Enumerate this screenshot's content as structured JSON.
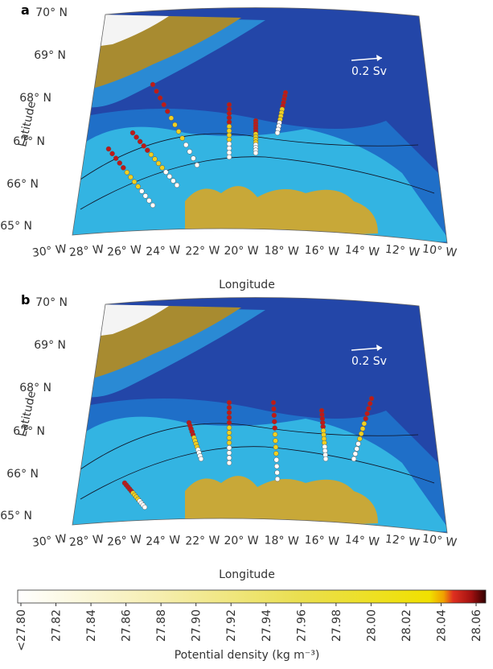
{
  "panels": [
    {
      "label": "a",
      "lat_labels": [
        "70° N",
        "69° N",
        "68° N",
        "67° N",
        "66° N",
        "65° N"
      ],
      "lon_labels": [
        "30° W",
        "28° W",
        "26° W",
        "24° W",
        "22° W",
        "20° W",
        "18° W",
        "16° W",
        "14° W",
        "12° W",
        "10° W"
      ],
      "y_title": "Latitude",
      "x_title": "Longitude",
      "scale_label": "0.2 Sv"
    },
    {
      "label": "b",
      "lat_labels": [
        "70° N",
        "69° N",
        "68° N",
        "67° N",
        "66° N",
        "65° N"
      ],
      "lon_labels": [
        "30° W",
        "28° W",
        "26° W",
        "24° W",
        "22° W",
        "20° W",
        "18° W",
        "16° W",
        "14° W",
        "12° W",
        "10° W"
      ],
      "y_title": "Latitude",
      "x_title": "Longitude",
      "scale_label": "0.2 Sv"
    }
  ],
  "colorbar": {
    "tick_labels": [
      "<27.80",
      "27.82",
      "27.84",
      "27.86",
      "27.88",
      "27.90",
      "27.92",
      "27.94",
      "27.96",
      "27.98",
      "28.00",
      "28.02",
      "28.04",
      "28.06"
    ],
    "title": "Potential density (kg m⁻³)"
  }
}
